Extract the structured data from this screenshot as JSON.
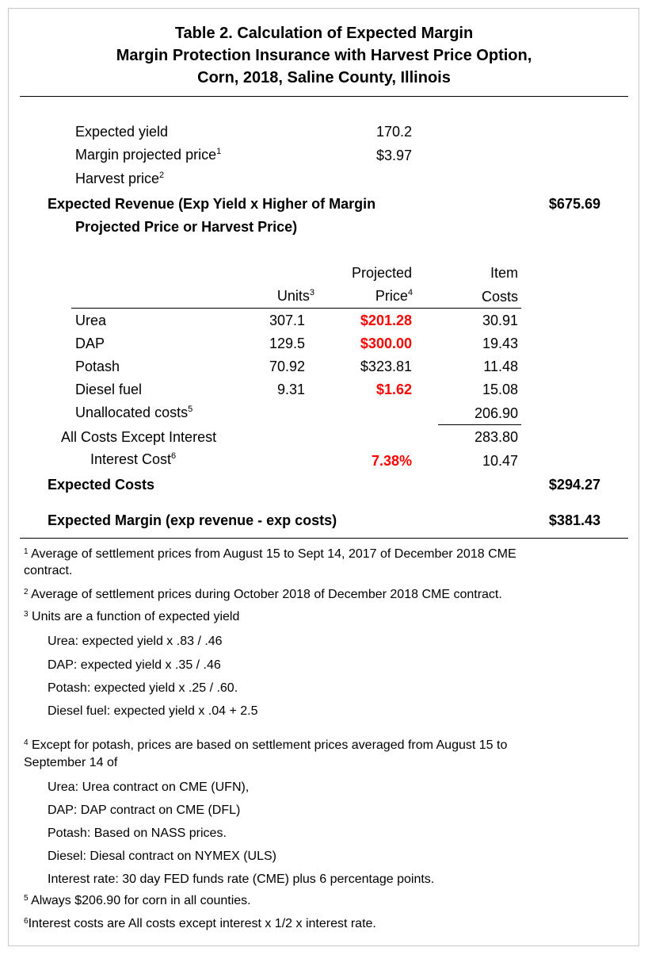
{
  "title": {
    "line1": "Table 2. Calculation of Expected Margin",
    "line2": "Margin Protection Insurance with Harvest Price Option,",
    "line3": "Corn, 2018, Saline County, Illinois"
  },
  "inputs": {
    "expected_yield_label": "Expected yield",
    "expected_yield_value": "170.2",
    "margin_price_label": "Margin projected price",
    "margin_price_note": "1",
    "margin_price_value": "$3.97",
    "harvest_price_label": "Harvest price",
    "harvest_price_note": "2",
    "harvest_price_value": ""
  },
  "revenue": {
    "label_line1": "Expected Revenue (Exp Yield x Higher of Margin",
    "label_line2": "Projected Price or Harvest Price)",
    "value": "$675.69"
  },
  "cost_table": {
    "headers": {
      "units": "Units",
      "units_note": "3",
      "price_line1": "Projected",
      "price_line2": "Price",
      "price_note": "4",
      "costs_line1": "Item",
      "costs_line2": "Costs"
    },
    "rows": [
      {
        "item": "Urea",
        "units": "307.1",
        "price": "$201.28",
        "price_highlight": true,
        "cost": "30.91"
      },
      {
        "item": "DAP",
        "units": "129.5",
        "price": "$300.00",
        "price_highlight": true,
        "cost": "19.43"
      },
      {
        "item": "Potash",
        "units": "70.92",
        "price": "$323.81",
        "price_highlight": false,
        "cost": "11.48"
      },
      {
        "item": "Diesel fuel",
        "units": "9.31",
        "price": "$1.62",
        "price_highlight": true,
        "cost": "15.08"
      }
    ],
    "unallocated": {
      "label": "Unallocated costs",
      "note": "5",
      "cost": "206.90"
    },
    "all_except_interest": {
      "label": "All Costs Except Interest",
      "cost": "283.80"
    },
    "interest": {
      "label": "Interest Cost",
      "note": "6",
      "rate": "7.38%",
      "cost": "10.47"
    },
    "highlight_color": "#ff0000"
  },
  "expected_costs": {
    "label": "Expected Costs",
    "value": "$294.27"
  },
  "expected_margin": {
    "label": "Expected Margin (exp revenue - exp costs)",
    "value": "$381.43"
  },
  "footnotes": {
    "n1": "1",
    "f1_line1": " Average of settlement prices from August 15 to Sept 14, 2017 of December 2018 CME",
    "f1_line2": "contract.",
    "n2": "2",
    "f2": " Average of settlement prices during October 2018 of December 2018 CME contract.",
    "n3": "3",
    "f3": " Units are a function of expected yield",
    "f3_items": [
      "Urea: expected yield x .83 / .46",
      "DAP: expected yield x .35 / .46",
      "Potash: expected yield x .25 / .60.",
      "Diesel fuel: expected yield x .04 + 2.5"
    ],
    "n4": "4",
    "f4_line1": " Except for potash, prices are based on settlement prices averaged from  August 15 to",
    "f4_line2": "September 14 of",
    "f4_items": [
      "Urea: Urea contract on CME (UFN),",
      "DAP: DAP contract on CME (DFL)",
      "Potash:  Based on NASS prices.",
      "Diesel: Diesal contract on NYMEX (ULS)",
      "Interest rate: 30 day FED funds rate (CME) plus 6 percentage points."
    ],
    "n5": "5",
    "f5": " Always $206.90 for corn in all counties.",
    "n6": "6",
    "f6": "Interest costs are All costs except interest x 1/2 x interest rate."
  }
}
